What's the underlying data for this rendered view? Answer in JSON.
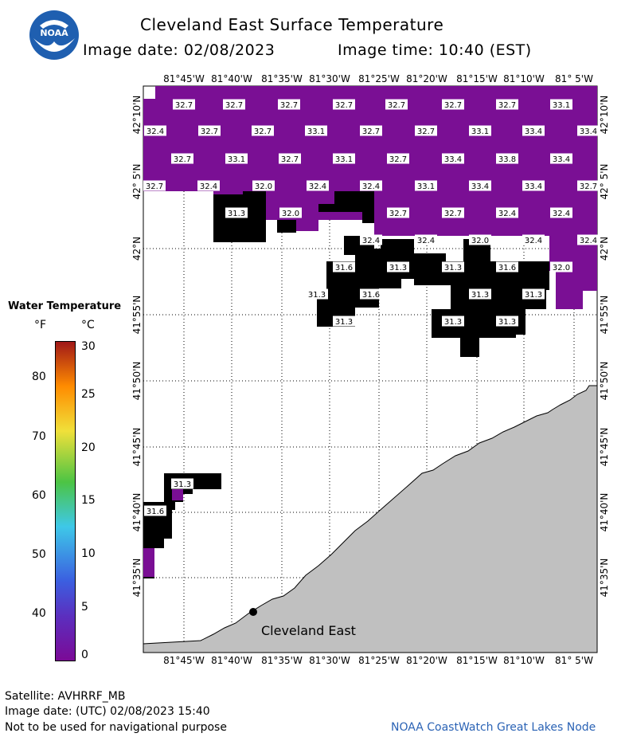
{
  "header": {
    "title": "Cleveland East Surface Temperature",
    "image_date_label": "Image date: 02/08/2023",
    "image_time_label": "Image time: 10:40 (EST)"
  },
  "logo": {
    "text": "NOAA"
  },
  "legend": {
    "title": "Water Temperature",
    "unit_f": "°F",
    "unit_c": "°C",
    "f_ticks": [
      "80",
      "70",
      "60",
      "50",
      "40"
    ],
    "c_ticks": [
      "30",
      "25",
      "20",
      "15",
      "10",
      "5",
      "0"
    ],
    "colors": {
      "low": "#7b0a96",
      "blue": "#3b5fe0",
      "cyan": "#3ec8e8",
      "green": "#4cc444",
      "yellow": "#f0e03a",
      "orange": "#ff8c00",
      "high": "#a01818"
    }
  },
  "map": {
    "lon_labels": [
      "81°45'W",
      "81°40'W",
      "81°35'W",
      "81°30'W",
      "81°25'W",
      "81°20'W",
      "81°15'W",
      "81°10'W",
      "81° 5'W"
    ],
    "lat_labels": [
      "42°10'N",
      "42° 5'N",
      "42°N",
      "41°55'N",
      "41°50'N",
      "41°45'N",
      "41°40'N",
      "41°35'N"
    ],
    "station_label": "Cleveland East",
    "colors": {
      "water": "#7a0f94",
      "ice": "#000000",
      "land": "#c0c0c0",
      "background": "#ffffff"
    },
    "temperature_labels": [
      "32.7",
      "32.7",
      "32.7",
      "32.7",
      "32.7",
      "32.7",
      "32.7",
      "33.1",
      "32.4",
      "32.7",
      "32.7",
      "33.1",
      "32.7",
      "32.7",
      "33.1",
      "33.4",
      "33.4",
      "32.7",
      "33.1",
      "32.7",
      "33.1",
      "32.7",
      "33.4",
      "33.8",
      "33.4",
      "32.7",
      "32.4",
      "32.0",
      "32.4",
      "32.4",
      "33.1",
      "33.4",
      "33.4",
      "32.7",
      "31.3",
      "32.0",
      "32.7",
      "32.7",
      "32.4",
      "32.4",
      "32.4",
      "32.4",
      "32.0",
      "32.4",
      "32.4",
      "31.6",
      "31.3",
      "31.3",
      "31.6",
      "32.0",
      "31.3",
      "31.6",
      "31.3",
      "31.3",
      "31.3",
      "31.3",
      "31.3",
      "31.3",
      "31.6"
    ]
  },
  "footer": {
    "satellite": "Satellite: AVHRRF_MB",
    "utc_date": "Image date: (UTC) 02/08/2023  15:40",
    "disclaimer": "Not to be used for navigational purpose",
    "source": "NOAA CoastWatch Great Lakes Node"
  }
}
